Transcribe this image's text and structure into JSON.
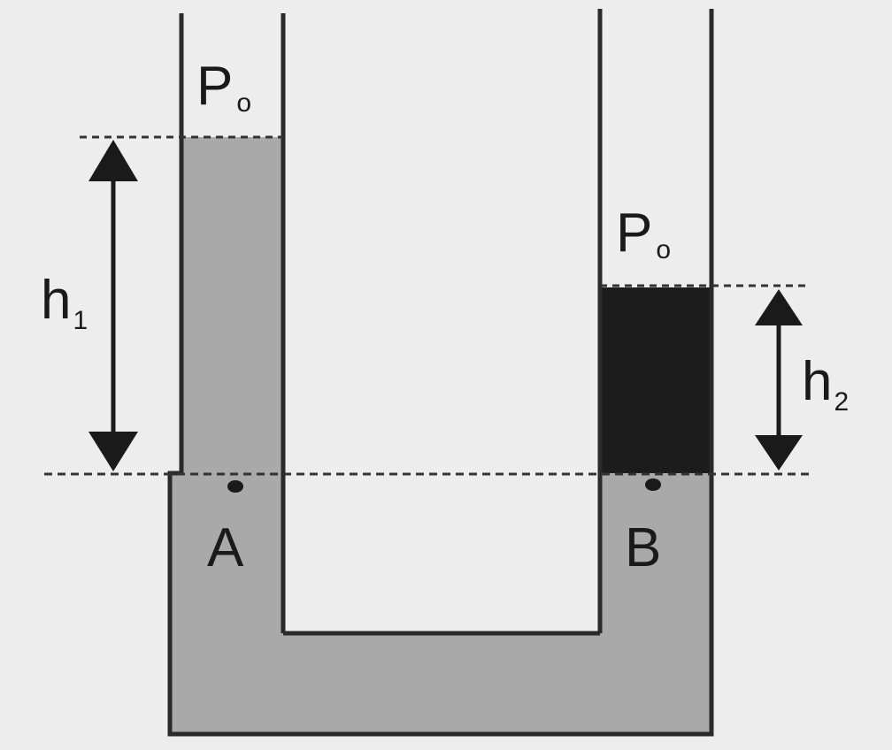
{
  "labels": {
    "left_pressure": "P",
    "left_pressure_sub": "o",
    "right_pressure": "P",
    "right_pressure_sub": "o",
    "h1": "h",
    "h1_sub": "1",
    "h2": "h",
    "h2_sub": "2",
    "point_a": "A",
    "point_b": "B"
  },
  "colors": {
    "liquid_light": "#a9a9a9",
    "liquid_dark": "#1c1c1c",
    "tube_wall": "#2a2a2a",
    "background": "#ededed"
  }
}
